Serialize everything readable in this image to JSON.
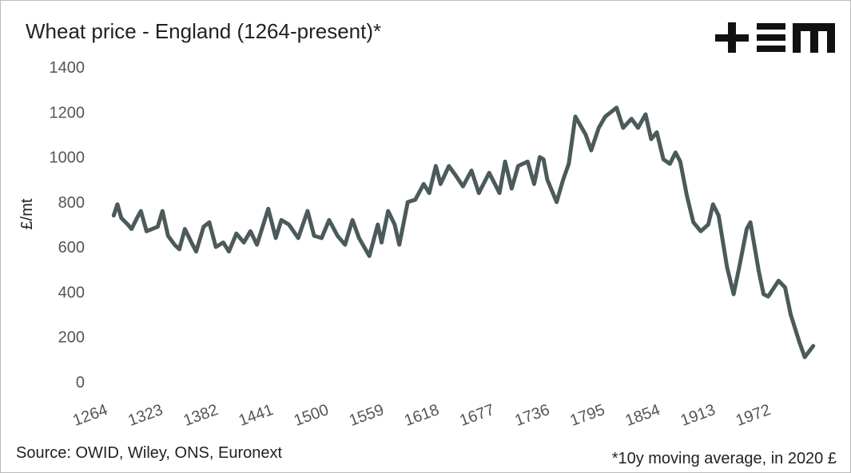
{
  "chart_data": {
    "type": "line",
    "title": "Wheat price - England (1264-present)*",
    "y_label": "£/mt",
    "source": "Source: OWID, Wiley, ONS, Euronext",
    "footnote": "*10y moving average, in 2020 £",
    "xlim": [
      1264,
      2015
    ],
    "xticks": [
      1264,
      1323,
      1382,
      1441,
      1500,
      1559,
      1618,
      1677,
      1736,
      1795,
      1854,
      1913,
      1972
    ],
    "ylim": [
      0,
      1400
    ],
    "yticks": [
      0,
      200,
      400,
      600,
      800,
      1000,
      1200,
      1400
    ],
    "x": [
      1266,
      1270,
      1274,
      1281,
      1285,
      1291,
      1295,
      1301,
      1307,
      1313,
      1318,
      1324,
      1331,
      1336,
      1342,
      1349,
      1354,
      1362,
      1368,
      1375,
      1383,
      1389,
      1397,
      1405,
      1412,
      1419,
      1431,
      1439,
      1445,
      1453,
      1463,
      1473,
      1480,
      1488,
      1496,
      1505,
      1513,
      1521,
      1528,
      1539,
      1548,
      1552,
      1559,
      1566,
      1571,
      1580,
      1588,
      1597,
      1603,
      1610,
      1615,
      1624,
      1631,
      1639,
      1648,
      1656,
      1667,
      1678,
      1684,
      1691,
      1698,
      1708,
      1715,
      1721,
      1725,
      1729,
      1739,
      1746,
      1752,
      1759,
      1770,
      1776,
      1784,
      1791,
      1797,
      1803,
      1810,
      1819,
      1826,
      1834,
      1840,
      1846,
      1853,
      1860,
      1866,
      1871,
      1878,
      1885,
      1893,
      1901,
      1906,
      1912,
      1921,
      1928,
      1934,
      1942,
      1946,
      1955,
      1960,
      1965,
      1976,
      1983,
      1989,
      1998,
      2004,
      2013
    ],
    "series": [
      {
        "name": "Wheat price",
        "color": "#4b5a5a",
        "values": [
          740,
          790,
          730,
          700,
          680,
          730,
          760,
          670,
          680,
          690,
          760,
          650,
          610,
          590,
          680,
          620,
          580,
          690,
          710,
          600,
          620,
          580,
          660,
          620,
          670,
          610,
          770,
          640,
          720,
          700,
          640,
          760,
          650,
          640,
          720,
          650,
          610,
          720,
          640,
          560,
          700,
          620,
          760,
          700,
          610,
          800,
          810,
          880,
          840,
          960,
          880,
          960,
          920,
          870,
          940,
          840,
          930,
          840,
          980,
          860,
          960,
          980,
          880,
          1000,
          990,
          900,
          800,
          900,
          970,
          1180,
          1100,
          1030,
          1130,
          1180,
          1200,
          1220,
          1130,
          1170,
          1130,
          1190,
          1080,
          1110,
          990,
          970,
          1020,
          980,
          830,
          710,
          670,
          700,
          790,
          740,
          510,
          390,
          510,
          680,
          710,
          490,
          390,
          380,
          450,
          420,
          300,
          180,
          110,
          160
        ]
      }
    ]
  }
}
